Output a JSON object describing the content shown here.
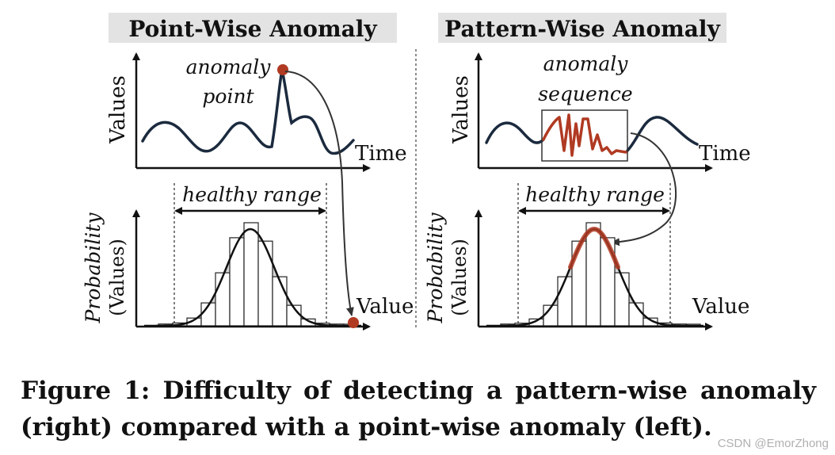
{
  "panels": {
    "left": {
      "title": "Point-Wise Anomaly",
      "annotation_line1": "anomaly",
      "annotation_line2": "point",
      "top_ylabel": "Values",
      "top_xlabel": "Time",
      "range_label": "healthy range",
      "bottom_ylabel_line1": "Probability",
      "bottom_ylabel_line2": "(Values)",
      "bottom_xlabel": "Value"
    },
    "right": {
      "title": "Pattern-Wise Anomaly",
      "annotation_line1": "anomaly",
      "annotation_line2": "sequence",
      "top_ylabel": "Values",
      "top_xlabel": "Time",
      "range_label": "healthy range",
      "bottom_ylabel_line1": "Probability",
      "bottom_ylabel_line2": "(Values)",
      "bottom_xlabel": "Value"
    }
  },
  "caption": "Figure 1: Difficulty of detecting a pattern-wise anomaly (right) compared with a point-wise anomaly (left).",
  "watermark": "CSDN @EmorZhong",
  "colors": {
    "series": "#1b2a3e",
    "anomaly": "#b03a22",
    "title_bg": "#e3e3e3",
    "hist_fill": "#d0d0d0"
  }
}
